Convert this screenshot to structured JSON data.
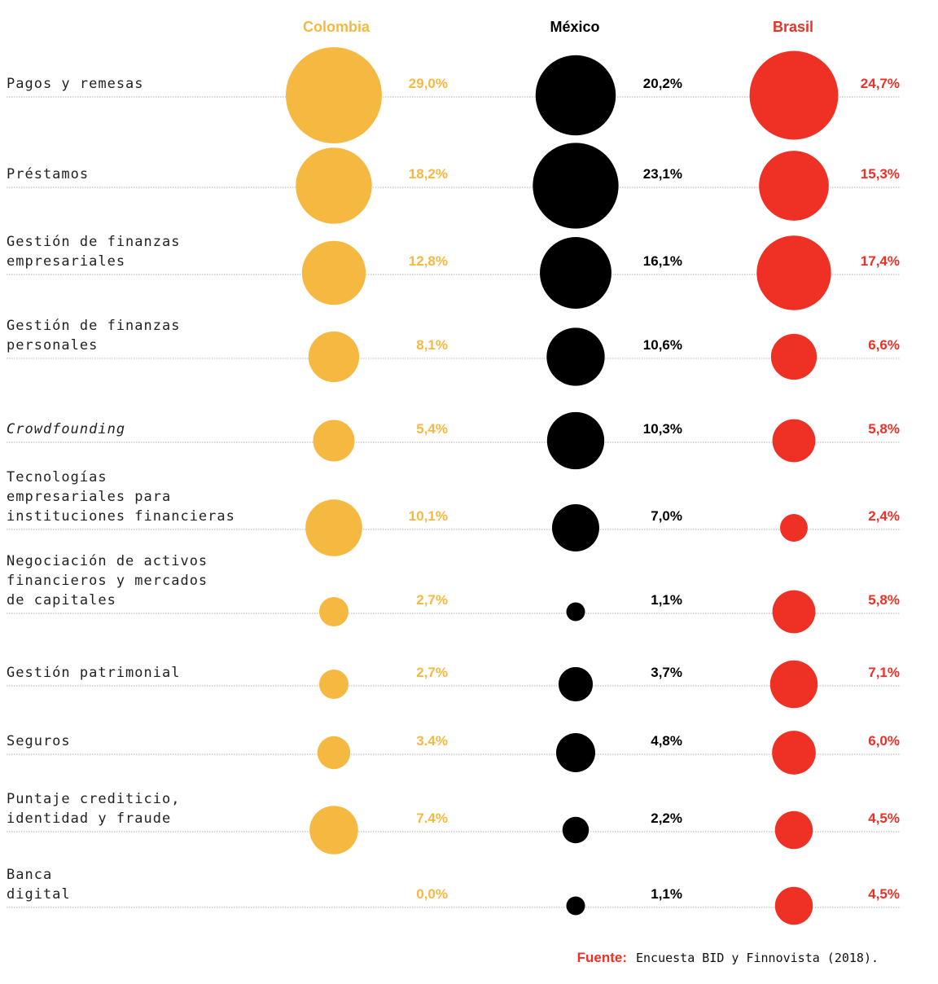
{
  "chart_data": {
    "type": "bubble-table",
    "colors": {
      "Colombia": "#F5B942",
      "México": "#000000",
      "Brasil": "#EE3124",
      "accent": "#EE3124"
    },
    "series": [
      {
        "name": "Colombia",
        "color": "#F5B942",
        "values": [
          29.0,
          18.2,
          12.8,
          8.1,
          5.4,
          10.1,
          2.7,
          2.7,
          3.4,
          7.4,
          0.0
        ],
        "labels": [
          "29,0%",
          "18,2%",
          "12,8%",
          "8,1%",
          "5,4%",
          "10,1%",
          "2,7%",
          "2,7%",
          "3.4%",
          "7.4%",
          "0,0%"
        ]
      },
      {
        "name": "México",
        "color": "#000000",
        "values": [
          20.2,
          23.1,
          16.1,
          10.6,
          10.3,
          7.0,
          1.1,
          3.7,
          4.8,
          2.2,
          1.1
        ],
        "labels": [
          "20,2%",
          "23,1%",
          "16,1%",
          "10,6%",
          "10,3%",
          "7,0%",
          "1,1%",
          "3,7%",
          "4,8%",
          "2,2%",
          "1,1%"
        ]
      },
      {
        "name": "Brasil",
        "color": "#EE3124",
        "values": [
          24.7,
          15.3,
          17.4,
          6.6,
          5.8,
          2.4,
          5.8,
          7.1,
          6.0,
          4.5,
          4.5
        ],
        "labels": [
          "24,7%",
          "15,3%",
          "17,4%",
          "6,6%",
          "5,8%",
          "2,4%",
          "5,8%",
          "7,1%",
          "6,0%",
          "4,5%",
          "4,5%"
        ]
      }
    ],
    "categories": [
      {
        "lines": [
          "Pagos y remesas"
        ],
        "italic": false
      },
      {
        "lines": [
          "Préstamos"
        ],
        "italic": false
      },
      {
        "lines": [
          "Gestión de finanzas",
          "empresariales"
        ],
        "italic": false
      },
      {
        "lines": [
          "Gestión de finanzas",
          "personales"
        ],
        "italic": false
      },
      {
        "lines": [
          "Crowdfounding"
        ],
        "italic": true
      },
      {
        "lines": [
          "Tecnologías",
          "empresariales para",
          "instituciones financieras"
        ],
        "italic": false
      },
      {
        "lines": [
          "Negociación de activos",
          "financieros y mercados",
          "de capitales"
        ],
        "italic": false
      },
      {
        "lines": [
          "Gestión patrimonial"
        ],
        "italic": false
      },
      {
        "lines": [
          "Seguros"
        ],
        "italic": false
      },
      {
        "lines": [
          "Puntaje crediticio,",
          "identidad y fraude"
        ],
        "italic": false
      },
      {
        "lines": [
          "Banca",
          "digital"
        ],
        "italic": false
      }
    ]
  },
  "source": {
    "label": "Fuente:",
    "text": "Encuesta BID y Finnovista (2018)."
  }
}
